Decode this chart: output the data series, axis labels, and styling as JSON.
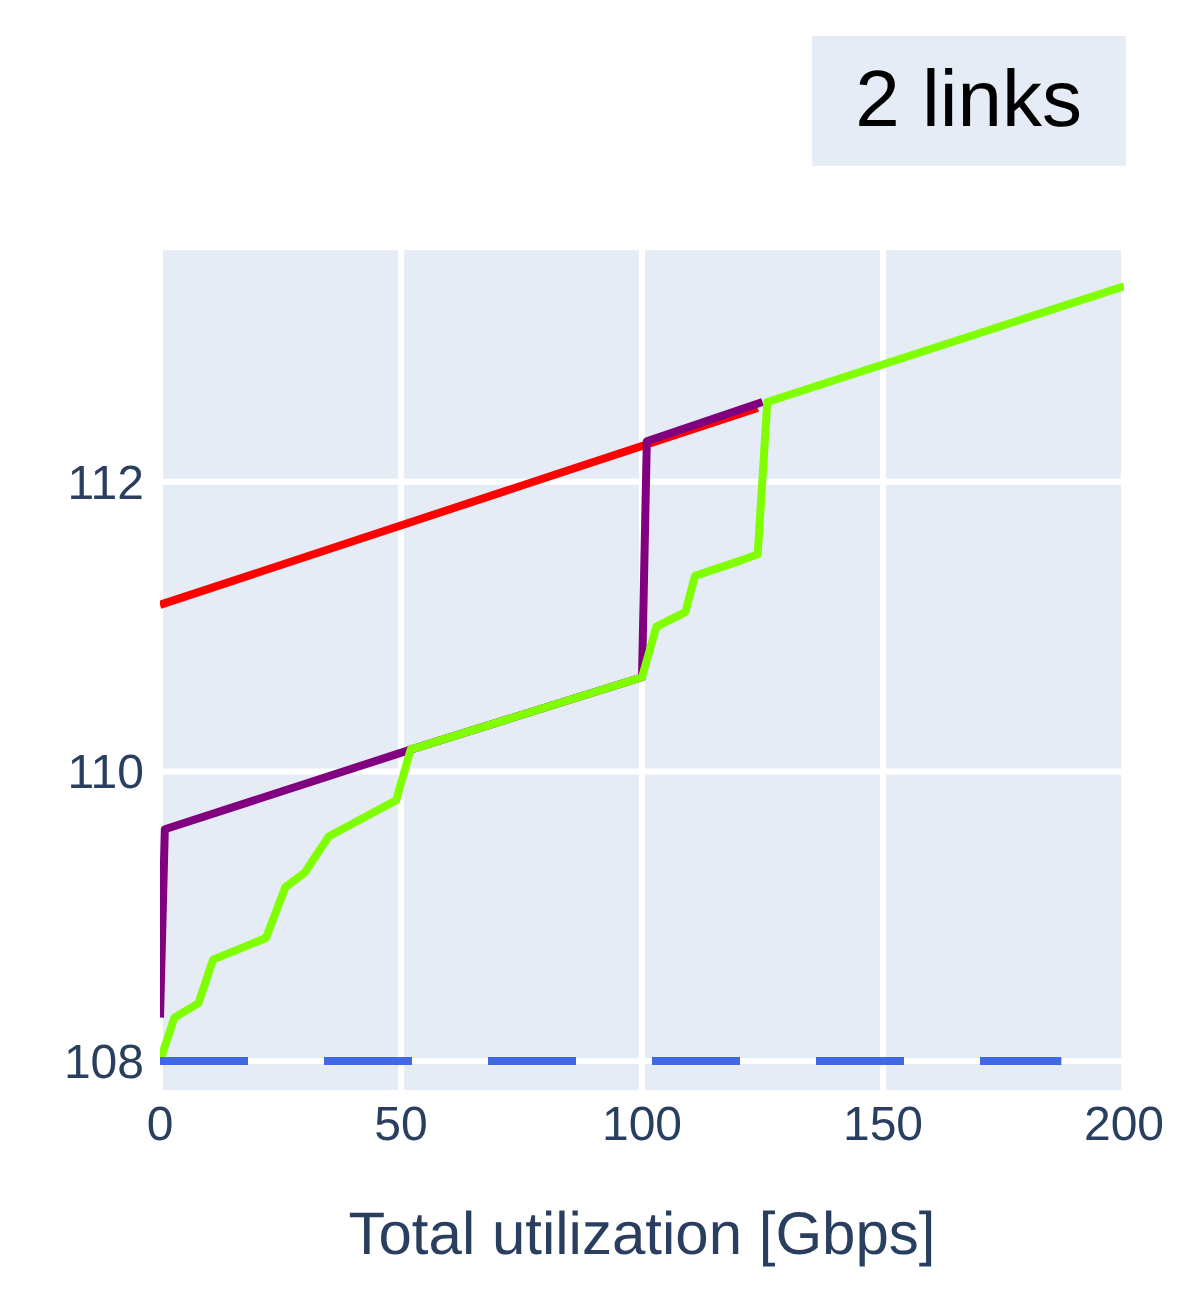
{
  "chart_data": {
    "type": "line",
    "title": "2 links",
    "xlabel": "Total utilization [Gbps]",
    "xlim": [
      0,
      200
    ],
    "xticks": [
      0,
      50,
      100,
      150,
      200
    ],
    "ylim": [
      107.8,
      113.6
    ],
    "yticks": [
      108,
      110,
      112
    ],
    "grid": true,
    "legend": false,
    "marker": "none",
    "series": [
      {
        "color": "#ff0000",
        "x": [
          0,
          124
        ],
        "values": [
          111.15,
          112.51
        ]
      },
      {
        "color": "#800080",
        "x": [
          0,
          1,
          52,
          100,
          101,
          125
        ],
        "values": [
          108.3,
          109.6,
          110.15,
          110.65,
          112.28,
          112.55
        ]
      },
      {
        "color": "#7fff00",
        "x": [
          0,
          3,
          8,
          11,
          22,
          26,
          30,
          35,
          49,
          52,
          100,
          103,
          109,
          111,
          120,
          124,
          126,
          200
        ],
        "values": [
          108.0,
          108.3,
          108.4,
          108.7,
          108.85,
          109.2,
          109.3,
          109.55,
          109.8,
          110.15,
          110.65,
          111.0,
          111.1,
          111.35,
          111.45,
          111.5,
          112.55,
          113.35
        ]
      },
      {
        "color": "#4169e1",
        "line_style": "dashed",
        "x": [
          0,
          187
        ],
        "values": [
          108,
          108
        ]
      }
    ]
  }
}
